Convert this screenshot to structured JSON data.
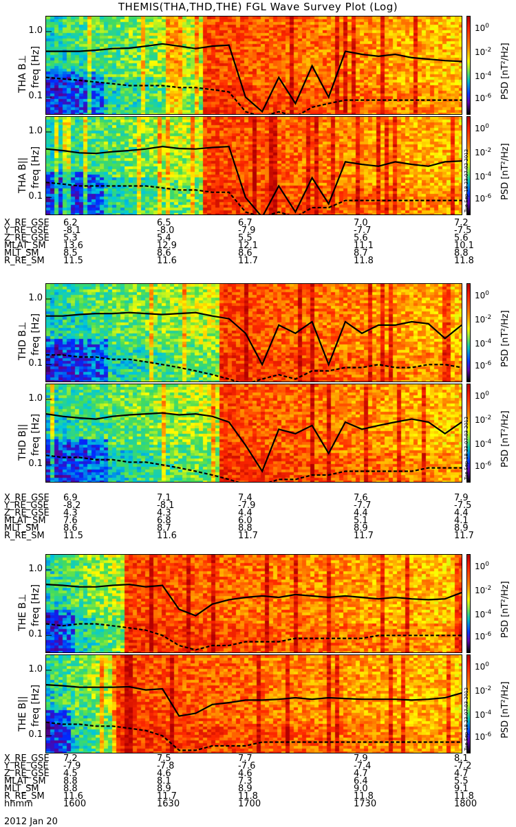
{
  "title": "THEMIS(THA,THD,THE) FGL Wave Survey Plot (Log)",
  "date_label": "2012 Jan 20",
  "colorbar": {
    "label": "PSD [nT²/Hz]",
    "ticks": [
      {
        "base": "10",
        "exp": "0"
      },
      {
        "base": "10",
        "exp": "-2"
      },
      {
        "base": "10",
        "exp": "-4"
      },
      {
        "base": "10",
        "exp": "-6"
      }
    ]
  },
  "freq_ticks": [
    "1.0",
    "0.1"
  ],
  "groups": [
    {
      "probe": "THA",
      "panels": [
        {
          "ylabel_probe": "THA B⊥",
          "ylabel_unit": "freq [Hz]",
          "stamp": ""
        },
        {
          "ylabel_probe": "THA B||",
          "ylabel_unit": "freq [Hz]",
          "stamp": "Tue Sep 18 23:07:02 2012"
        }
      ],
      "ephemeris": [
        {
          "label": "X_RE_GSE",
          "values": [
            "6.2",
            "6.5",
            "6.7",
            "7.0",
            "7.2"
          ]
        },
        {
          "label": "Y_RE_GSE",
          "values": [
            "-8.1",
            "-8.0",
            "-7.9",
            "-7.7",
            "-7.5"
          ]
        },
        {
          "label": "Z_RE_GSE",
          "values": [
            "5.3",
            "5.4",
            "5.5",
            "5.6",
            "5.6"
          ]
        },
        {
          "label": "MLAT_SM",
          "values": [
            "13.6",
            "12.9",
            "12.1",
            "11.1",
            "10.1"
          ]
        },
        {
          "label": "MLT_SM",
          "values": [
            "8.5",
            "8.6",
            "8.6",
            "8.7",
            "8.8"
          ]
        },
        {
          "label": "R_RE_SM",
          "values": [
            "11.5",
            "11.6",
            "11.7",
            "11.8",
            "11.8"
          ]
        }
      ]
    },
    {
      "probe": "THD",
      "panels": [
        {
          "ylabel_probe": "THD B⊥",
          "ylabel_unit": "freq [Hz]",
          "stamp": ""
        },
        {
          "ylabel_probe": "THD B||",
          "ylabel_unit": "freq [Hz]",
          "stamp": "Tue Sep 18 23:07:03 2012"
        }
      ],
      "ephemeris": [
        {
          "label": "X_RE_GSE",
          "values": [
            "6.9",
            "7.1",
            "7.4",
            "7.6",
            "7.9"
          ]
        },
        {
          "label": "Y_RE_GSE",
          "values": [
            "-8.2",
            "-8.1",
            "-7.9",
            "-7.7",
            "-7.5"
          ]
        },
        {
          "label": "Z_RE_GSE",
          "values": [
            "4.3",
            "4.3",
            "4.4",
            "4.4",
            "4.4"
          ]
        },
        {
          "label": "MLAT_SM",
          "values": [
            "7.6",
            "6.8",
            "6.0",
            "5.1",
            "4.1"
          ]
        },
        {
          "label": "MLT_SM",
          "values": [
            "8.6",
            "8.7",
            "8.8",
            "8.9",
            "8.9"
          ]
        },
        {
          "label": "R_RE_SM",
          "values": [
            "11.5",
            "11.6",
            "11.7",
            "11.7",
            "11.7"
          ]
        }
      ]
    },
    {
      "probe": "THE",
      "panels": [
        {
          "ylabel_probe": "THE B⊥",
          "ylabel_unit": "freq [Hz]",
          "stamp": ""
        },
        {
          "ylabel_probe": "THE B||",
          "ylabel_unit": "freq [Hz]",
          "stamp": "Tue Sep 18 23:07:03 2012"
        }
      ],
      "ephemeris": [
        {
          "label": "X_RE_GSE",
          "values": [
            "7.2",
            "7.5",
            "7.7",
            "7.9",
            "8.1"
          ]
        },
        {
          "label": "Y_RE_GSE",
          "values": [
            "-7.9",
            "-7.8",
            "-7.6",
            "-7.4",
            "-7.2"
          ]
        },
        {
          "label": "Z_RE_GSE",
          "values": [
            "4.5",
            "4.6",
            "4.6",
            "4.7",
            "4.7"
          ]
        },
        {
          "label": "MLAT_SM",
          "values": [
            "8.8",
            "8.1",
            "7.3",
            "6.4",
            "5.5"
          ]
        },
        {
          "label": "MLT_SM",
          "values": [
            "8.8",
            "8.9",
            "8.9",
            "9.0",
            "9.1"
          ]
        },
        {
          "label": "R_RE_SM",
          "values": [
            "11.6",
            "11.7",
            "11.8",
            "11.8",
            "11.8"
          ]
        },
        {
          "label": "hhmm",
          "values": [
            "1600",
            "1630",
            "1700",
            "1730",
            "1800"
          ]
        }
      ]
    }
  ],
  "chart_data": {
    "type": "heatmap",
    "title": "THEMIS(THA,THD,THE) FGL Wave Survey Plot (Log)",
    "x": {
      "label": "hhmm",
      "ticks": [
        "1600",
        "1630",
        "1700",
        "1730",
        "1800"
      ],
      "range": [
        "1600",
        "1800"
      ]
    },
    "y": {
      "label": "freq [Hz]",
      "scale": "log",
      "range": [
        0.055,
        1.7
      ],
      "ticks": [
        1.0,
        0.1
      ]
    },
    "z": {
      "label": "PSD [nT²/Hz]",
      "scale": "log",
      "range": [
        1e-07,
        10.0
      ],
      "ticks": [
        "10^0",
        "10^-2",
        "10^-4",
        "10^-6"
      ]
    },
    "line_series": [
      "solid: upper frequency trace",
      "dashed: lower frequency trace"
    ],
    "panels": [
      {
        "name": "THA B⊥",
        "hot_start": "1645",
        "solid": [
          0.5,
          0.5,
          0.5,
          0.52,
          0.55,
          0.56,
          0.6,
          0.65,
          0.6,
          0.55,
          0.6,
          0.62,
          0.1,
          0.06,
          0.2,
          0.08,
          0.3,
          0.1,
          0.5,
          0.45,
          0.42,
          0.45,
          0.4,
          0.38,
          0.36,
          0.35
        ],
        "dashed": [
          0.2,
          0.19,
          0.18,
          0.17,
          0.16,
          0.15,
          0.15,
          0.15,
          0.14,
          0.14,
          0.13,
          0.12,
          0.06,
          0.05,
          0.06,
          0.05,
          0.07,
          0.08,
          0.09,
          0.09,
          0.09,
          0.09,
          0.09,
          0.09,
          0.09,
          0.09
        ]
      },
      {
        "name": "THA B||",
        "hot_start": "1645",
        "solid": [
          0.55,
          0.52,
          0.48,
          0.47,
          0.5,
          0.52,
          0.55,
          0.6,
          0.56,
          0.55,
          0.58,
          0.6,
          0.1,
          0.05,
          0.15,
          0.06,
          0.2,
          0.08,
          0.35,
          0.32,
          0.3,
          0.35,
          0.32,
          0.3,
          0.35,
          0.36
        ],
        "dashed": [
          0.17,
          0.16,
          0.15,
          0.15,
          0.15,
          0.15,
          0.15,
          0.14,
          0.13,
          0.13,
          0.12,
          0.12,
          0.06,
          0.05,
          0.06,
          0.05,
          0.07,
          0.07,
          0.09,
          0.09,
          0.09,
          0.09,
          0.09,
          0.09,
          0.09,
          0.09
        ]
      },
      {
        "name": "THD B⊥",
        "hot_start": "1650",
        "solid": [
          0.55,
          0.55,
          0.58,
          0.6,
          0.6,
          0.62,
          0.6,
          0.58,
          0.6,
          0.62,
          0.55,
          0.5,
          0.3,
          0.1,
          0.4,
          0.3,
          0.45,
          0.1,
          0.45,
          0.3,
          0.4,
          0.4,
          0.45,
          0.42,
          0.25,
          0.4
        ],
        "dashed": [
          0.14,
          0.14,
          0.13,
          0.13,
          0.12,
          0.12,
          0.11,
          0.1,
          0.09,
          0.08,
          0.07,
          0.06,
          0.05,
          0.06,
          0.07,
          0.06,
          0.08,
          0.08,
          0.09,
          0.09,
          0.1,
          0.09,
          0.09,
          0.1,
          0.1,
          0.09
        ]
      },
      {
        "name": "THD B||",
        "hot_start": "1650",
        "solid": [
          0.6,
          0.55,
          0.52,
          0.5,
          0.55,
          0.58,
          0.6,
          0.62,
          0.58,
          0.6,
          0.55,
          0.45,
          0.2,
          0.08,
          0.35,
          0.3,
          0.4,
          0.15,
          0.45,
          0.35,
          0.4,
          0.45,
          0.5,
          0.45,
          0.3,
          0.45
        ],
        "dashed": [
          0.14,
          0.13,
          0.13,
          0.12,
          0.12,
          0.11,
          0.11,
          0.1,
          0.09,
          0.08,
          0.07,
          0.06,
          0.05,
          0.05,
          0.06,
          0.06,
          0.07,
          0.07,
          0.08,
          0.08,
          0.08,
          0.08,
          0.08,
          0.09,
          0.09,
          0.09
        ]
      },
      {
        "name": "THE B⊥",
        "hot_start": "1622",
        "solid": [
          0.6,
          0.58,
          0.55,
          0.55,
          0.58,
          0.6,
          0.55,
          0.58,
          0.25,
          0.2,
          0.3,
          0.35,
          0.38,
          0.4,
          0.38,
          0.42,
          0.4,
          0.38,
          0.4,
          0.38,
          0.36,
          0.38,
          0.36,
          0.35,
          0.36,
          0.45
        ],
        "dashed": [
          0.15,
          0.14,
          0.15,
          0.15,
          0.14,
          0.13,
          0.12,
          0.1,
          0.07,
          0.06,
          0.07,
          0.07,
          0.08,
          0.08,
          0.08,
          0.09,
          0.09,
          0.09,
          0.09,
          0.09,
          0.1,
          0.1,
          0.1,
          0.1,
          0.1,
          0.1
        ]
      },
      {
        "name": "THE B||",
        "hot_start": "1620",
        "solid": [
          0.6,
          0.58,
          0.55,
          0.55,
          0.55,
          0.56,
          0.5,
          0.52,
          0.2,
          0.22,
          0.3,
          0.32,
          0.35,
          0.35,
          0.36,
          0.38,
          0.36,
          0.38,
          0.37,
          0.36,
          0.36,
          0.36,
          0.35,
          0.36,
          0.38,
          0.45
        ],
        "dashed": [
          0.16,
          0.15,
          0.15,
          0.14,
          0.14,
          0.13,
          0.12,
          0.1,
          0.06,
          0.06,
          0.07,
          0.07,
          0.07,
          0.08,
          0.08,
          0.08,
          0.08,
          0.08,
          0.08,
          0.08,
          0.08,
          0.08,
          0.08,
          0.08,
          0.08,
          0.08
        ]
      }
    ]
  }
}
